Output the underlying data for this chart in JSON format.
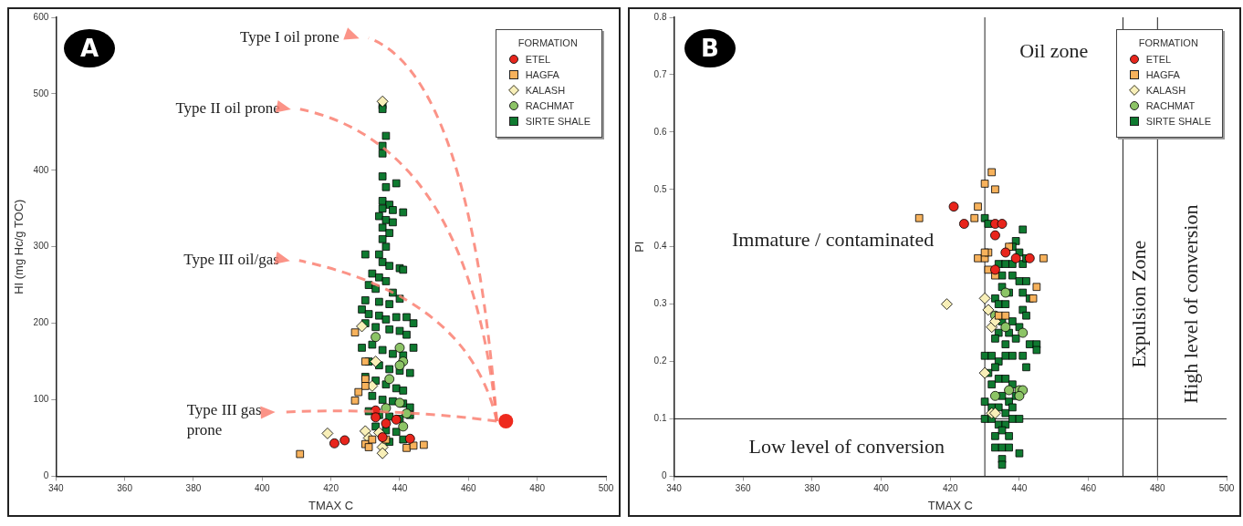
{
  "chart_data": [
    {
      "type": "scatter",
      "xlabel": "TMAX C",
      "ylabel": "HI (mg Hc/g TOC)",
      "legend_title": "FORMATION",
      "legend": "top right",
      "grid": false,
      "xlim": [
        340,
        500
      ],
      "xticks": [
        340,
        360,
        380,
        400,
        420,
        440,
        460,
        480,
        500
      ],
      "ylim": [
        0,
        600
      ],
      "yticks": [
        0,
        100,
        200,
        300,
        400,
        500,
        600
      ],
      "annotations": [
        "A",
        "Type I oil prone",
        "Type II oil prone",
        "Type III oil/gas",
        "Type III gas prone"
      ],
      "series": [
        {
          "name": "ETEL",
          "color": "#e8251c",
          "marker": "circle",
          "x": [
            421,
            424,
            433,
            433,
            436,
            439,
            435,
            443
          ],
          "values": [
            43,
            47,
            86,
            77,
            69,
            74,
            51,
            49
          ]
        },
        {
          "name": "HAGFA",
          "color": "#f7b25c",
          "marker": "square",
          "x": [
            411,
            427,
            430,
            430,
            430,
            428,
            427,
            430,
            432,
            436,
            442,
            444,
            447,
            431
          ],
          "values": [
            29,
            188,
            150,
            127,
            118,
            110,
            99,
            42,
            48,
            48,
            37,
            40,
            41,
            38
          ]
        },
        {
          "name": "KALASH",
          "color": "#f8efb8",
          "marker": "diamond",
          "x": [
            429,
            419,
            430,
            431,
            434,
            435,
            435,
            435,
            432,
            433
          ],
          "values": [
            196,
            56,
            59,
            50,
            57,
            38,
            30,
            490,
            118,
            150
          ]
        },
        {
          "name": "RACHMAT",
          "color": "#8cc466",
          "marker": "circle",
          "x": [
            433,
            440,
            441,
            440,
            437,
            436,
            440,
            441,
            442
          ],
          "values": [
            182,
            168,
            150,
            145,
            127,
            89,
            96,
            65,
            82
          ]
        },
        {
          "name": "SIRTE SHALE",
          "color": "#0f7a30",
          "marker": "square",
          "x": [
            435,
            435,
            436,
            435,
            435,
            435,
            439,
            436,
            435,
            437,
            435,
            438,
            441,
            434,
            436,
            438,
            435,
            437,
            435,
            436,
            434,
            430,
            435,
            437,
            440,
            441,
            432,
            434,
            436,
            431,
            433,
            438,
            430,
            434,
            437,
            440,
            429,
            431,
            434,
            436,
            439,
            442,
            444,
            430,
            433,
            437,
            440,
            442,
            429,
            432,
            435,
            438,
            441,
            444,
            431,
            434,
            437,
            440,
            443,
            430,
            433,
            436,
            439,
            441,
            432,
            435,
            438,
            441,
            443,
            431,
            434,
            437,
            440,
            443,
            433,
            436,
            439,
            441,
            437
          ],
          "values": [
            485,
            480,
            445,
            432,
            422,
            392,
            383,
            378,
            360,
            355,
            350,
            348,
            345,
            340,
            335,
            332,
            325,
            318,
            310,
            300,
            290,
            290,
            280,
            275,
            272,
            270,
            265,
            260,
            255,
            250,
            245,
            240,
            230,
            228,
            225,
            232,
            218,
            212,
            210,
            205,
            208,
            208,
            200,
            200,
            195,
            192,
            190,
            185,
            168,
            172,
            165,
            160,
            158,
            168,
            150,
            145,
            140,
            138,
            135,
            130,
            125,
            120,
            115,
            112,
            105,
            100,
            98,
            95,
            90,
            85,
            80,
            78,
            75,
            80,
            65,
            60,
            58,
            48,
            45
          ]
        }
      ]
    },
    {
      "type": "scatter",
      "xlabel": "TMAX C",
      "ylabel": "PI",
      "legend_title": "FORMATION",
      "legend": "top right",
      "grid": false,
      "xlim": [
        340,
        500
      ],
      "xticks": [
        340,
        360,
        380,
        400,
        420,
        440,
        460,
        480,
        500
      ],
      "ylim": [
        0,
        0.8
      ],
      "yticks": [
        0,
        0.1,
        0.2,
        0.3,
        0.4,
        0.5,
        0.6,
        0.7,
        0.8
      ],
      "ref_lines": [
        {
          "axis": "x",
          "value": 430
        },
        {
          "axis": "x",
          "value": 470
        },
        {
          "axis": "x",
          "value": 480
        },
        {
          "axis": "y",
          "value": 0.1
        }
      ],
      "annotations": [
        "B",
        "Oil zone",
        "Immature / contaminated",
        "Low level of conversion",
        "Expulsion Zone",
        "High level of conversion"
      ],
      "series": [
        {
          "name": "ETEL",
          "color": "#e8251c",
          "marker": "circle",
          "x": [
            421,
            424,
            433,
            435,
            433,
            436,
            439,
            443,
            433
          ],
          "values": [
            0.47,
            0.44,
            0.44,
            0.44,
            0.42,
            0.39,
            0.38,
            0.38,
            0.36
          ]
        },
        {
          "name": "HAGFA",
          "color": "#f7b25c",
          "marker": "square",
          "x": [
            411,
            432,
            430,
            433,
            428,
            427,
            428,
            430,
            431,
            430,
            431,
            433,
            447,
            445,
            444,
            434,
            436,
            437
          ],
          "values": [
            0.45,
            0.53,
            0.51,
            0.5,
            0.47,
            0.45,
            0.38,
            0.38,
            0.39,
            0.39,
            0.36,
            0.35,
            0.38,
            0.33,
            0.31,
            0.28,
            0.28,
            0.4
          ]
        },
        {
          "name": "KALASH",
          "color": "#f8efb8",
          "marker": "diamond",
          "x": [
            419,
            430,
            431,
            432,
            433,
            430,
            432,
            433
          ],
          "values": [
            0.3,
            0.31,
            0.29,
            0.26,
            0.27,
            0.18,
            0.11,
            0.11
          ]
        },
        {
          "name": "RACHMAT",
          "color": "#8cc466",
          "marker": "circle",
          "x": [
            436,
            433,
            436,
            441,
            433,
            437,
            440,
            441,
            440
          ],
          "values": [
            0.32,
            0.28,
            0.26,
            0.25,
            0.14,
            0.15,
            0.15,
            0.15,
            0.14
          ]
        },
        {
          "name": "SIRTE SHALE",
          "color": "#0f7a30",
          "marker": "square",
          "x": [
            430,
            431,
            441,
            439,
            438,
            440,
            434,
            436,
            438,
            441,
            442,
            435,
            438,
            440,
            442,
            435,
            437,
            433,
            441,
            443,
            434,
            436,
            441,
            442,
            435,
            438,
            434,
            437,
            440,
            433,
            436,
            439,
            443,
            445,
            445,
            430,
            432,
            434,
            436,
            438,
            441,
            442,
            433,
            431,
            432,
            434,
            436,
            438,
            435,
            437,
            439,
            430,
            432,
            434,
            436,
            438,
            430,
            432,
            434,
            436,
            438,
            440,
            433,
            435,
            437,
            433,
            435,
            437,
            440,
            435,
            435
          ],
          "values": [
            0.45,
            0.44,
            0.43,
            0.41,
            0.4,
            0.39,
            0.37,
            0.37,
            0.37,
            0.37,
            0.38,
            0.35,
            0.35,
            0.34,
            0.34,
            0.33,
            0.32,
            0.31,
            0.32,
            0.31,
            0.3,
            0.3,
            0.29,
            0.28,
            0.27,
            0.27,
            0.25,
            0.25,
            0.26,
            0.24,
            0.23,
            0.24,
            0.23,
            0.23,
            0.22,
            0.21,
            0.21,
            0.2,
            0.21,
            0.21,
            0.21,
            0.19,
            0.19,
            0.18,
            0.16,
            0.17,
            0.17,
            0.16,
            0.14,
            0.13,
            0.14,
            0.13,
            0.12,
            0.12,
            0.11,
            0.12,
            0.1,
            0.1,
            0.09,
            0.09,
            0.1,
            0.1,
            0.07,
            0.08,
            0.07,
            0.05,
            0.05,
            0.05,
            0.04,
            0.03,
            0.02
          ]
        }
      ]
    }
  ]
}
